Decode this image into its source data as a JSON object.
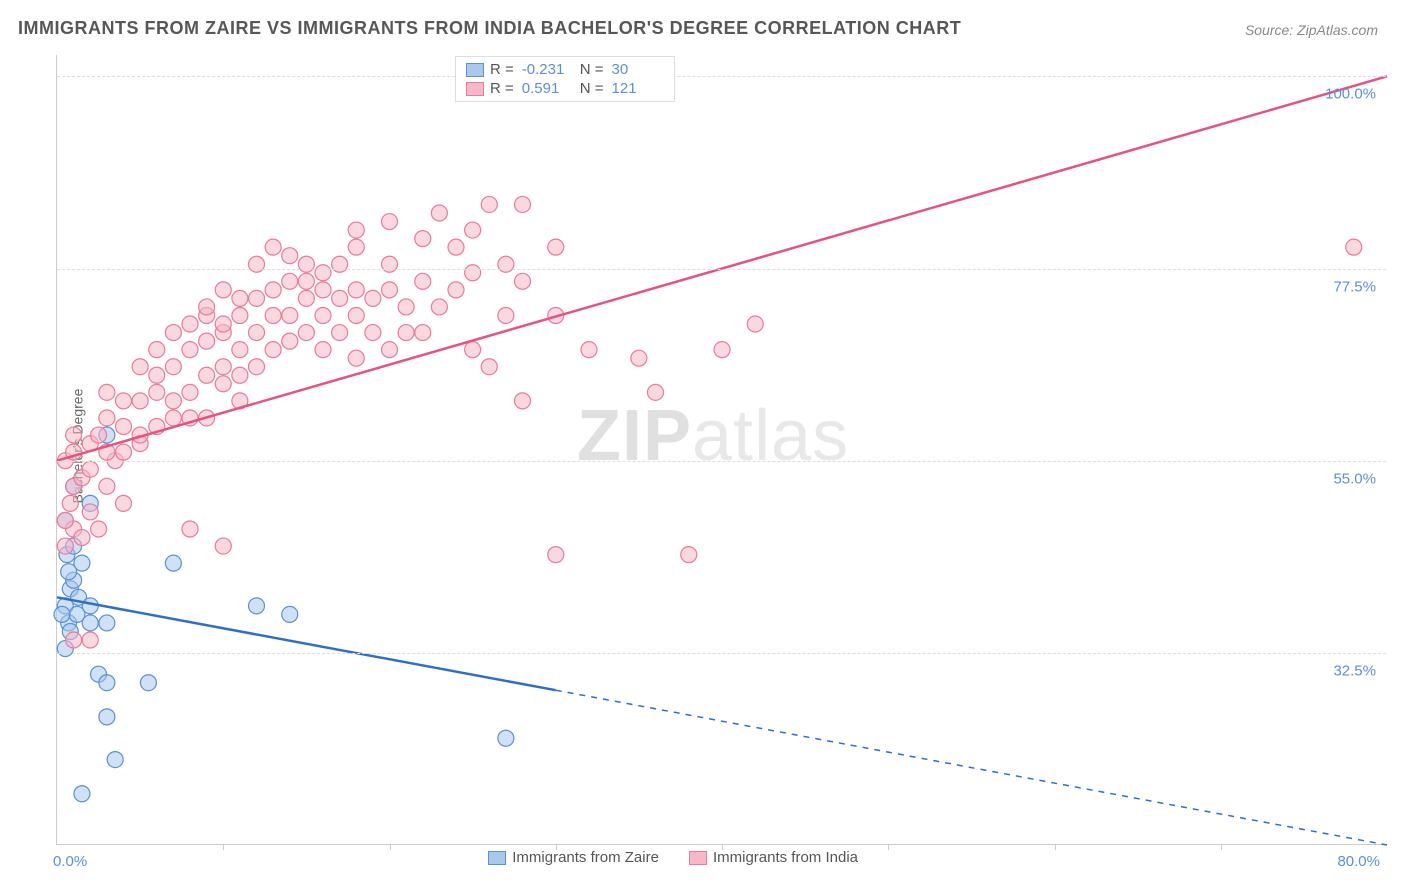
{
  "title": "IMMIGRANTS FROM ZAIRE VS IMMIGRANTS FROM INDIA BACHELOR'S DEGREE CORRELATION CHART",
  "source": "Source: ZipAtlas.com",
  "ylabel": "Bachelor's Degree",
  "watermark_a": "ZIP",
  "watermark_b": "atlas",
  "chart": {
    "type": "scatter",
    "xlim": [
      0,
      80
    ],
    "ylim": [
      10,
      102.5
    ],
    "yticks": [
      {
        "v": 32.5,
        "label": "32.5%"
      },
      {
        "v": 55.0,
        "label": "55.0%"
      },
      {
        "v": 77.5,
        "label": "77.5%"
      },
      {
        "v": 100.0,
        "label": "100.0%"
      }
    ],
    "xticks_minor": [
      10,
      20,
      30,
      40,
      50,
      60,
      70
    ],
    "xtick_labels": [
      {
        "v": 0,
        "label": "0.0%"
      },
      {
        "v": 80,
        "label": "80.0%"
      }
    ],
    "background_color": "#ffffff",
    "grid_color": "#dddddd",
    "axis_color": "#cccccc",
    "label_color": "#5b8fd6",
    "title_color": "#575757",
    "marker_radius": 8,
    "marker_opacity": 0.55,
    "series": [
      {
        "name": "Immigrants from Zaire",
        "color_fill": "#a8c8ec",
        "color_stroke": "#5b8fd6",
        "line_color": "#2f6fc7",
        "r_label": "R =",
        "r_value": "-0.231",
        "n_label": "N =",
        "n_value": "30",
        "trend": {
          "x1": 0,
          "y1": 39,
          "x2": 80,
          "y2": 10,
          "solid_until_x": 30
        },
        "points": [
          [
            0.5,
            38
          ],
          [
            0.8,
            40
          ],
          [
            1,
            41
          ],
          [
            0.7,
            36
          ],
          [
            1.2,
            37
          ],
          [
            0.5,
            33
          ],
          [
            0.8,
            35
          ],
          [
            0.6,
            44
          ],
          [
            1,
            45
          ],
          [
            1.5,
            43
          ],
          [
            0.3,
            37
          ],
          [
            0.7,
            42
          ],
          [
            1.3,
            39
          ],
          [
            2,
            38
          ],
          [
            3,
            36
          ],
          [
            1,
            52
          ],
          [
            2,
            50
          ],
          [
            0.5,
            48
          ],
          [
            2.5,
            30
          ],
          [
            3,
            29
          ],
          [
            5.5,
            29
          ],
          [
            3,
            25
          ],
          [
            3.5,
            20
          ],
          [
            1.5,
            16
          ],
          [
            12,
            38
          ],
          [
            14,
            37
          ],
          [
            7,
            43
          ],
          [
            3,
            58
          ],
          [
            27,
            22.5
          ],
          [
            2,
            36
          ]
        ]
      },
      {
        "name": "Immigrants from India",
        "color_fill": "#f6b8c6",
        "color_stroke": "#e97a9a",
        "line_color": "#e6537e",
        "r_label": "R =",
        "r_value": " 0.591",
        "n_label": "N =",
        "n_value": "121",
        "trend": {
          "x1": 0,
          "y1": 55,
          "x2": 80,
          "y2": 100,
          "solid_until_x": 80
        },
        "points": [
          [
            0.5,
            45
          ],
          [
            1,
            47
          ],
          [
            1.5,
            46
          ],
          [
            0.8,
            50
          ],
          [
            1,
            52
          ],
          [
            2,
            49
          ],
          [
            2.5,
            47
          ],
          [
            0.5,
            55
          ],
          [
            1,
            56
          ],
          [
            1.5,
            53
          ],
          [
            2,
            54
          ],
          [
            3,
            52
          ],
          [
            3.5,
            55
          ],
          [
            4,
            50
          ],
          [
            1,
            58
          ],
          [
            0.5,
            48
          ],
          [
            2,
            57
          ],
          [
            3,
            56
          ],
          [
            2.5,
            58
          ],
          [
            4,
            56
          ],
          [
            5,
            57
          ],
          [
            3,
            60
          ],
          [
            4,
            59
          ],
          [
            5,
            58
          ],
          [
            6,
            59
          ],
          [
            7,
            60
          ],
          [
            5,
            62
          ],
          [
            6,
            63
          ],
          [
            4,
            62
          ],
          [
            3,
            63
          ],
          [
            7,
            62
          ],
          [
            8,
            60
          ],
          [
            6,
            65
          ],
          [
            7,
            66
          ],
          [
            8,
            63
          ],
          [
            5,
            66
          ],
          [
            9,
            65
          ],
          [
            10,
            64
          ],
          [
            11,
            62
          ],
          [
            9,
            60
          ],
          [
            10,
            66
          ],
          [
            11,
            65
          ],
          [
            6,
            68
          ],
          [
            7,
            70
          ],
          [
            8,
            68
          ],
          [
            9,
            69
          ],
          [
            10,
            70
          ],
          [
            11,
            68
          ],
          [
            12,
            66
          ],
          [
            8,
            71
          ],
          [
            9,
            72
          ],
          [
            10,
            71
          ],
          [
            12,
            70
          ],
          [
            13,
            68
          ],
          [
            11,
            72
          ],
          [
            14,
            69
          ],
          [
            13,
            72
          ],
          [
            15,
            70
          ],
          [
            16,
            68
          ],
          [
            14,
            72
          ],
          [
            12,
            74
          ],
          [
            13,
            75
          ],
          [
            15,
            74
          ],
          [
            16,
            72
          ],
          [
            17,
            70
          ],
          [
            18,
            67
          ],
          [
            14,
            76
          ],
          [
            11,
            74
          ],
          [
            10,
            75
          ],
          [
            9,
            73
          ],
          [
            15,
            76
          ],
          [
            16,
            75
          ],
          [
            17,
            74
          ],
          [
            18,
            72
          ],
          [
            19,
            70
          ],
          [
            20,
            68
          ],
          [
            21,
            70
          ],
          [
            15,
            78
          ],
          [
            16,
            77
          ],
          [
            14,
            79
          ],
          [
            13,
            80
          ],
          [
            12,
            78
          ],
          [
            18,
            75
          ],
          [
            19,
            74
          ],
          [
            20,
            75
          ],
          [
            21,
            73
          ],
          [
            22,
            70
          ],
          [
            17,
            78
          ],
          [
            18,
            80
          ],
          [
            20,
            78
          ],
          [
            22,
            76
          ],
          [
            24,
            75
          ],
          [
            23,
            73
          ],
          [
            25,
            68
          ],
          [
            26,
            66
          ],
          [
            28,
            62
          ],
          [
            25,
            77
          ],
          [
            27,
            72
          ],
          [
            18,
            82
          ],
          [
            20,
            83
          ],
          [
            22,
            81
          ],
          [
            24,
            80
          ],
          [
            25,
            82
          ],
          [
            27,
            78
          ],
          [
            28,
            76
          ],
          [
            30,
            72
          ],
          [
            32,
            68
          ],
          [
            23,
            84
          ],
          [
            26,
            85
          ],
          [
            28,
            85
          ],
          [
            30,
            80
          ],
          [
            35,
            67
          ],
          [
            40,
            68
          ],
          [
            42,
            71
          ],
          [
            36,
            63
          ],
          [
            38,
            44
          ],
          [
            30,
            44
          ],
          [
            10,
            45
          ],
          [
            2,
            34
          ],
          [
            1,
            34
          ],
          [
            8,
            47
          ],
          [
            78,
            80
          ]
        ]
      }
    ]
  },
  "legend_bottom": {
    "items": [
      "Immigrants from Zaire",
      "Immigrants from India"
    ]
  }
}
